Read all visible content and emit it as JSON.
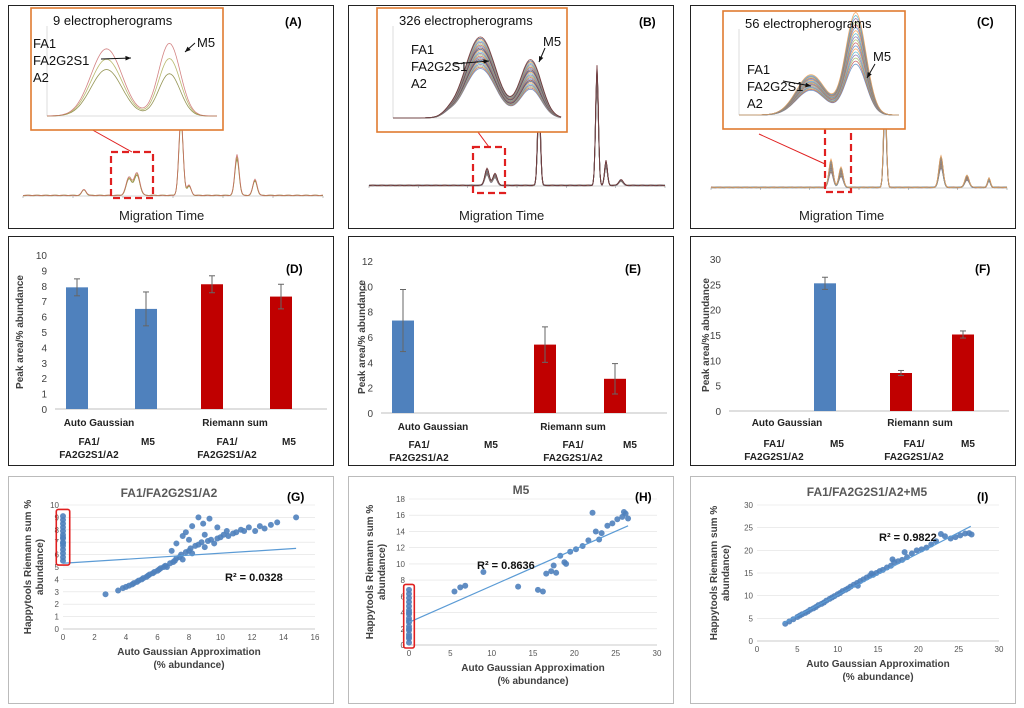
{
  "chart_data": [
    {
      "id": "A",
      "type": "line",
      "panel_label": "(A)",
      "inset_title": "9 electropherograms",
      "inset_labels": [
        "FA1",
        "FA2G2S1",
        "A2"
      ],
      "inset_peak_label": "M5",
      "xlabel": "Migration Time",
      "colors": [
        "#7a7a2a",
        "#a8a84a",
        "#c86464"
      ]
    },
    {
      "id": "B",
      "type": "line",
      "panel_label": "(B)",
      "inset_title": "326 electropherograms",
      "inset_labels": [
        "FA1",
        "FA2G2S1",
        "A2"
      ],
      "inset_peak_label": "M5",
      "xlabel": "Migration Time",
      "colors": [
        "#4f81bd",
        "#c0504d",
        "#9bbb59",
        "#8064a2",
        "#4bacc6",
        "#f79646",
        "#2c4d75",
        "#772c2a"
      ]
    },
    {
      "id": "C",
      "type": "line",
      "panel_label": "(C)",
      "inset_title": "56 electropherograms",
      "inset_labels": [
        "FA1",
        "FA2G2S1",
        "A2"
      ],
      "inset_peak_label": "M5",
      "xlabel": "Migration Time",
      "colors": [
        "#4f81bd",
        "#c0504d",
        "#9bbb59",
        "#8064a2",
        "#4bacc6",
        "#f79646"
      ]
    },
    {
      "id": "D",
      "type": "bar",
      "panel_label": "(D)",
      "ylabel": "Peak area/% abundance",
      "ylim": [
        0,
        10
      ],
      "yticks": [
        0,
        1,
        2,
        3,
        4,
        5,
        6,
        7,
        8,
        9,
        10
      ],
      "groups": [
        "Auto Gaussian",
        "Riemann sum"
      ],
      "categories": [
        "FA1/\nFA2G2S1/A2",
        "M5",
        "FA1/\nFA2G2S1/A2",
        "M5"
      ],
      "values": [
        7.9,
        6.5,
        8.1,
        7.3
      ],
      "errors": [
        0.55,
        1.1,
        0.55,
        0.8
      ],
      "bar_colors": [
        "#4f81bd",
        "#4f81bd",
        "#c00000",
        "#c00000"
      ]
    },
    {
      "id": "E",
      "type": "bar",
      "panel_label": "(E)",
      "ylabel": "Peak area/% abundance",
      "ylim": [
        0,
        12
      ],
      "yticks": [
        0,
        2,
        4,
        6,
        8,
        10,
        12
      ],
      "groups": [
        "Auto Gaussian",
        "Riemann sum"
      ],
      "categories": [
        "FA1/\nFA2G2S1/A2",
        "M5",
        "FA1/\nFA2G2S1/A2",
        "M5"
      ],
      "values": [
        7.3,
        0,
        5.4,
        2.7
      ],
      "errors": [
        2.45,
        0,
        1.4,
        1.2
      ],
      "bar_colors": [
        "#4f81bd",
        "#4f81bd",
        "#c00000",
        "#c00000"
      ]
    },
    {
      "id": "F",
      "type": "bar",
      "panel_label": "(F)",
      "ylabel": "Peak area/% abundance",
      "ylim": [
        0,
        30
      ],
      "yticks": [
        0,
        5,
        10,
        15,
        20,
        25,
        30
      ],
      "groups": [
        "Auto Gaussian",
        "Riemann sum"
      ],
      "categories": [
        "FA1/\nFA2G2S1/A2",
        "M5",
        "FA1/\nFA2G2S1/A2",
        "M5"
      ],
      "values": [
        0,
        25.2,
        7.5,
        15.1
      ],
      "errors": [
        0,
        1.2,
        0.5,
        0.7
      ],
      "bar_colors": [
        "#4f81bd",
        "#4f81bd",
        "#c00000",
        "#c00000"
      ]
    },
    {
      "id": "G",
      "type": "scatter",
      "panel_label": "(G)",
      "title": "FA1/FA2G2S1/A2",
      "xlabel": "Auto Gaussian Approximation\n(% abundance)",
      "ylabel": "Happytools Riemann sum %\nabundance)",
      "xlim": [
        0,
        16
      ],
      "ylim": [
        0,
        10
      ],
      "xticks": [
        0,
        2,
        4,
        6,
        8,
        10,
        12,
        14,
        16
      ],
      "yticks": [
        0,
        1,
        2,
        3,
        4,
        5,
        6,
        7,
        8,
        9,
        10
      ],
      "r2": "R² = 0.0328",
      "trend": [
        [
          0,
          5.3
        ],
        [
          14.8,
          6.5
        ]
      ],
      "highlight": {
        "x": [
          -0.3,
          0.3
        ],
        "y": [
          5.4,
          9.4
        ]
      },
      "points": [
        [
          0,
          5.5
        ],
        [
          0,
          5.8
        ],
        [
          0,
          6.1
        ],
        [
          0,
          6.4
        ],
        [
          0,
          6.7
        ],
        [
          0,
          7.0
        ],
        [
          0,
          7.3
        ],
        [
          0,
          7.6
        ],
        [
          0,
          7.9
        ],
        [
          0,
          8.2
        ],
        [
          0,
          8.5
        ],
        [
          0,
          8.8
        ],
        [
          0,
          9.1
        ],
        [
          0,
          6.9
        ],
        [
          0,
          7.4
        ],
        [
          2.7,
          2.8
        ],
        [
          3.5,
          3.1
        ],
        [
          3.8,
          3.3
        ],
        [
          4.0,
          3.4
        ],
        [
          4.2,
          3.5
        ],
        [
          4.4,
          3.6
        ],
        [
          4.5,
          3.7
        ],
        [
          4.7,
          3.8
        ],
        [
          4.8,
          3.9
        ],
        [
          5.0,
          4.0
        ],
        [
          5.1,
          4.1
        ],
        [
          5.3,
          4.2
        ],
        [
          5.4,
          4.3
        ],
        [
          5.5,
          4.4
        ],
        [
          5.7,
          4.5
        ],
        [
          5.8,
          4.6
        ],
        [
          6.0,
          4.7
        ],
        [
          6.1,
          4.8
        ],
        [
          6.2,
          4.9
        ],
        [
          6.4,
          5.0
        ],
        [
          6.5,
          5.1
        ],
        [
          6.6,
          5.0
        ],
        [
          6.8,
          5.3
        ],
        [
          7.0,
          5.4
        ],
        [
          7.1,
          5.5
        ],
        [
          7.2,
          5.7
        ],
        [
          7.4,
          5.8
        ],
        [
          7.5,
          6.0
        ],
        [
          7.6,
          5.6
        ],
        [
          7.8,
          6.2
        ],
        [
          8.0,
          6.3
        ],
        [
          8.1,
          6.5
        ],
        [
          8.2,
          6.1
        ],
        [
          8.4,
          6.7
        ],
        [
          8.6,
          6.8
        ],
        [
          8.8,
          7.0
        ],
        [
          9.0,
          6.6
        ],
        [
          9.2,
          7.1
        ],
        [
          9.4,
          7.2
        ],
        [
          9.6,
          6.9
        ],
        [
          9.8,
          7.3
        ],
        [
          10.0,
          7.4
        ],
        [
          10.2,
          7.6
        ],
        [
          10.5,
          7.5
        ],
        [
          10.8,
          7.7
        ],
        [
          11.0,
          7.8
        ],
        [
          11.3,
          8.0
        ],
        [
          11.5,
          7.9
        ],
        [
          11.8,
          8.2
        ],
        [
          12.2,
          7.9
        ],
        [
          12.5,
          8.3
        ],
        [
          12.8,
          8.1
        ],
        [
          13.2,
          8.4
        ],
        [
          13.6,
          8.6
        ],
        [
          14.8,
          9.0
        ],
        [
          7.6,
          7.5
        ],
        [
          7.8,
          7.8
        ],
        [
          8.2,
          8.3
        ],
        [
          8.6,
          9.0
        ],
        [
          8.9,
          8.5
        ],
        [
          9.3,
          8.9
        ],
        [
          9.8,
          8.2
        ],
        [
          7.2,
          6.9
        ],
        [
          6.9,
          6.3
        ],
        [
          8.0,
          7.2
        ],
        [
          9.0,
          7.6
        ],
        [
          10.4,
          7.9
        ]
      ]
    },
    {
      "id": "H",
      "type": "scatter",
      "panel_label": "(H)",
      "title": "M5",
      "xlabel": "Auto Gaussian Approximation\n(% abundance)",
      "ylabel": "Happytools Riemann sum %\nabundance)",
      "xlim": [
        0,
        30
      ],
      "ylim": [
        0,
        18
      ],
      "xticks": [
        0,
        5,
        10,
        15,
        20,
        25,
        30
      ],
      "yticks": [
        0,
        2,
        4,
        6,
        8,
        10,
        12,
        14,
        16,
        18
      ],
      "r2": "R² = 0.8636",
      "trend": [
        [
          0,
          2.8
        ],
        [
          26.5,
          14.7
        ]
      ],
      "highlight": {
        "x": [
          -0.4,
          0.4
        ],
        "y": [
          0,
          7.1
        ]
      },
      "points": [
        [
          0,
          0.3
        ],
        [
          0,
          0.8
        ],
        [
          0,
          1.3
        ],
        [
          0,
          1.8
        ],
        [
          0,
          2.3
        ],
        [
          0,
          2.8
        ],
        [
          0,
          3.3
        ],
        [
          0,
          3.8
        ],
        [
          0,
          4.3
        ],
        [
          0,
          4.8
        ],
        [
          0,
          5.3
        ],
        [
          0,
          5.8
        ],
        [
          0,
          6.3
        ],
        [
          0,
          6.8
        ],
        [
          0,
          2.0
        ],
        [
          0,
          3.0
        ],
        [
          0,
          4.0
        ],
        [
          0,
          1.0
        ],
        [
          5.5,
          6.6
        ],
        [
          6.2,
          7.1
        ],
        [
          6.8,
          7.3
        ],
        [
          9.0,
          9.0
        ],
        [
          13.2,
          7.2
        ],
        [
          15.6,
          6.8
        ],
        [
          16.2,
          6.6
        ],
        [
          16.6,
          8.8
        ],
        [
          17.2,
          9.1
        ],
        [
          17.8,
          8.9
        ],
        [
          18.3,
          11.0
        ],
        [
          18.8,
          10.2
        ],
        [
          19.5,
          11.5
        ],
        [
          20.2,
          11.8
        ],
        [
          21.0,
          12.2
        ],
        [
          21.7,
          12.9
        ],
        [
          22.2,
          16.3
        ],
        [
          22.6,
          14.0
        ],
        [
          23.3,
          13.8
        ],
        [
          24.0,
          14.7
        ],
        [
          24.6,
          15.0
        ],
        [
          25.2,
          15.5
        ],
        [
          25.8,
          15.8
        ],
        [
          26.2,
          16.2
        ],
        [
          26.5,
          15.6
        ],
        [
          26.0,
          16.4
        ],
        [
          23.0,
          13.0
        ],
        [
          19.0,
          10.0
        ],
        [
          17.5,
          9.8
        ]
      ]
    },
    {
      "id": "I",
      "type": "scatter",
      "panel_label": "(I)",
      "title": "FA1/FA2G2S1/A2+M5",
      "xlabel": "Auto Gaussian Approximation\n(% abundance)",
      "ylabel": "Happytools Riemann sum %\nabundance)",
      "xlim": [
        0,
        30
      ],
      "ylim": [
        0,
        30
      ],
      "xticks": [
        0,
        5,
        10,
        15,
        20,
        25,
        30
      ],
      "yticks": [
        0,
        5,
        10,
        15,
        20,
        25,
        30
      ],
      "r2": "R² = 0.9822",
      "trend": [
        [
          3.2,
          3.9
        ],
        [
          26.5,
          25.3
        ]
      ],
      "highlight": null,
      "points": [
        [
          3.5,
          3.8
        ],
        [
          4.0,
          4.3
        ],
        [
          4.5,
          4.8
        ],
        [
          5.0,
          5.3
        ],
        [
          5.3,
          5.6
        ],
        [
          5.6,
          5.9
        ],
        [
          6.0,
          6.2
        ],
        [
          6.3,
          6.5
        ],
        [
          6.6,
          6.9
        ],
        [
          7.0,
          7.2
        ],
        [
          7.3,
          7.5
        ],
        [
          7.6,
          7.9
        ],
        [
          8.0,
          8.2
        ],
        [
          8.3,
          8.5
        ],
        [
          8.6,
          8.9
        ],
        [
          9.0,
          9.3
        ],
        [
          9.3,
          9.6
        ],
        [
          9.6,
          9.9
        ],
        [
          10.0,
          10.3
        ],
        [
          10.3,
          10.6
        ],
        [
          10.6,
          11.0
        ],
        [
          11.0,
          11.3
        ],
        [
          11.3,
          11.6
        ],
        [
          11.6,
          12.0
        ],
        [
          12.0,
          12.4
        ],
        [
          12.4,
          12.8
        ],
        [
          12.8,
          13.2
        ],
        [
          13.2,
          13.6
        ],
        [
          13.6,
          14.0
        ],
        [
          14.0,
          14.4
        ],
        [
          14.4,
          14.6
        ],
        [
          14.8,
          15.0
        ],
        [
          15.2,
          15.4
        ],
        [
          15.6,
          15.7
        ],
        [
          16.1,
          16.2
        ],
        [
          16.6,
          16.6
        ],
        [
          17.0,
          17.4
        ],
        [
          17.5,
          17.6
        ],
        [
          18.0,
          17.9
        ],
        [
          18.6,
          18.5
        ],
        [
          19.2,
          19.3
        ],
        [
          19.8,
          20.0
        ],
        [
          20.4,
          20.2
        ],
        [
          21.0,
          20.6
        ],
        [
          21.6,
          21.3
        ],
        [
          22.2,
          22.0
        ],
        [
          22.8,
          23.6
        ],
        [
          23.3,
          23.1
        ],
        [
          24.0,
          22.6
        ],
        [
          24.6,
          22.9
        ],
        [
          25.2,
          23.3
        ],
        [
          25.8,
          23.7
        ],
        [
          26.3,
          23.8
        ],
        [
          26.6,
          23.5
        ],
        [
          12.5,
          12.2
        ],
        [
          14.2,
          14.9
        ],
        [
          16.8,
          18.0
        ],
        [
          18.3,
          19.6
        ]
      ]
    }
  ]
}
